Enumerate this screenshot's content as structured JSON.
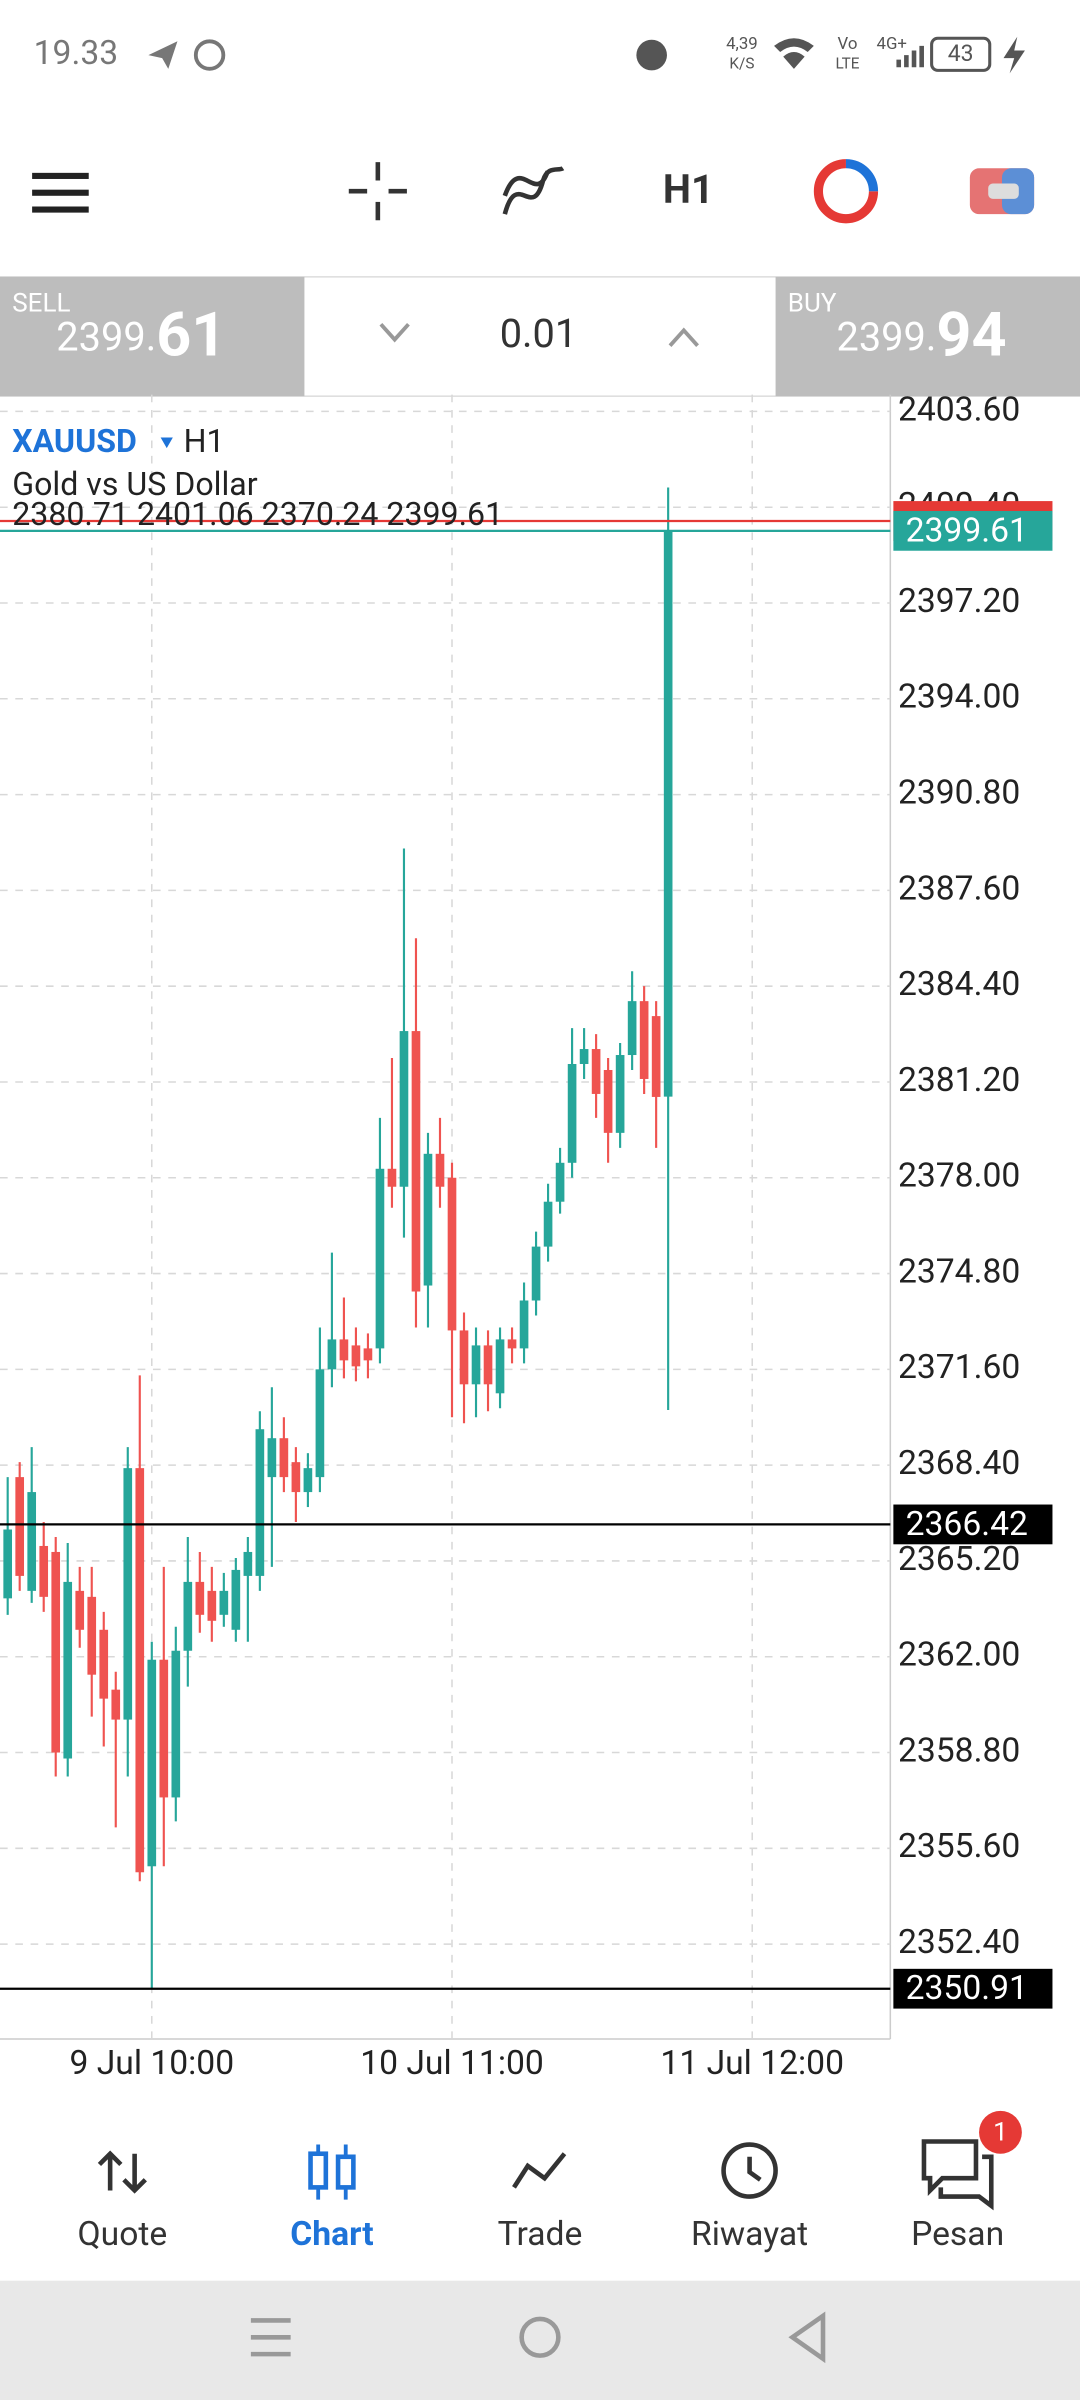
{
  "status_bar": {
    "time": "19.33",
    "network_speed": "4,39",
    "network_speed_unit": "K/S",
    "volte_top": "Vo",
    "volte_bottom": "LTE",
    "signal": "4G+",
    "battery": "43"
  },
  "toolbar": {
    "timeframe": "H1"
  },
  "trade_panel": {
    "sell_label": "SELL",
    "sell_price_main": "2399.",
    "sell_price_big": "61",
    "lot": "0.01",
    "buy_label": "BUY",
    "buy_price_main": "2399.",
    "buy_price_big": "94"
  },
  "chart_data": {
    "type": "candlestick",
    "symbol": "XAUUSD",
    "timeframe": "H1",
    "description": "Gold vs US Dollar",
    "open": [
      2363.95,
      2368.0,
      2364.2,
      2365.7,
      2365.5,
      2358.6,
      2364.2,
      2364.0,
      2362.9,
      2360.9,
      2359.9,
      2368.3,
      2355.0,
      2361.9,
      2357.3,
      2362.2,
      2364.5,
      2364.2,
      2363.4,
      2362.9,
      2364.7,
      2364.7,
      2368.0,
      2369.3,
      2368.5,
      2367.5,
      2368.0,
      2371.6,
      2372.6,
      2372.4,
      2372.3,
      2372.3,
      2378.3,
      2377.7,
      2382.9,
      2374.4,
      2378.8,
      2378.0,
      2372.9,
      2371.1,
      2372.4,
      2370.8,
      2372.6,
      2372.3,
      2373.9,
      2375.7,
      2377.2,
      2378.5,
      2381.8,
      2382.3,
      2381.6,
      2379.5,
      2382.1,
      2383.9,
      2383.4,
      2380.71
    ],
    "high": [
      2368.0,
      2368.5,
      2369.0,
      2366.5,
      2366.0,
      2365.8,
      2365.0,
      2365.0,
      2363.5,
      2361.5,
      2369.0,
      2371.4,
      2362.5,
      2365.0,
      2363.0,
      2366.0,
      2365.5,
      2365.0,
      2364.8,
      2365.3,
      2366.0,
      2370.2,
      2371.0,
      2370.0,
      2369.0,
      2368.8,
      2373.0,
      2375.5,
      2374.0,
      2373.0,
      2372.8,
      2380.0,
      2382.0,
      2389.0,
      2386.0,
      2379.5,
      2380.0,
      2378.5,
      2373.5,
      2373.0,
      2372.9,
      2373.0,
      2373.0,
      2374.5,
      2376.2,
      2377.8,
      2379.0,
      2383.0,
      2383.0,
      2382.8,
      2382.0,
      2382.5,
      2384.9,
      2384.4,
      2383.9,
      2401.06
    ],
    "low": [
      2363.4,
      2364.2,
      2363.8,
      2363.5,
      2358.0,
      2358.0,
      2362.3,
      2360.0,
      2359.0,
      2356.3,
      2358.0,
      2354.5,
      2350.91,
      2355.0,
      2356.5,
      2361.0,
      2362.8,
      2362.5,
      2363.0,
      2362.5,
      2362.5,
      2364.2,
      2365.0,
      2367.5,
      2366.5,
      2367.0,
      2367.5,
      2371.0,
      2371.3,
      2371.2,
      2371.3,
      2371.8,
      2377.0,
      2376.0,
      2373.0,
      2373.0,
      2377.0,
      2370.0,
      2369.8,
      2370.0,
      2370.2,
      2370.3,
      2371.8,
      2371.8,
      2373.4,
      2375.2,
      2376.8,
      2378.0,
      2381.3,
      2380.0,
      2378.5,
      2379.0,
      2381.6,
      2380.8,
      2379.0,
      2370.24
    ],
    "close": [
      2366.25,
      2364.7,
      2367.5,
      2364.0,
      2358.8,
      2364.5,
      2362.9,
      2361.4,
      2360.6,
      2359.9,
      2368.3,
      2354.8,
      2361.9,
      2357.3,
      2362.2,
      2364.5,
      2363.4,
      2363.2,
      2364.2,
      2364.9,
      2365.5,
      2369.6,
      2369.3,
      2368.0,
      2367.5,
      2368.3,
      2371.6,
      2372.6,
      2371.9,
      2371.7,
      2371.9,
      2378.3,
      2377.7,
      2382.9,
      2374.2,
      2378.8,
      2377.7,
      2372.9,
      2371.1,
      2372.4,
      2371.1,
      2372.6,
      2372.3,
      2373.9,
      2375.7,
      2377.2,
      2378.5,
      2381.8,
      2382.3,
      2380.8,
      2379.5,
      2382.1,
      2383.9,
      2381.3,
      2380.7,
      2399.61
    ],
    "up_color": "#26a69a",
    "down_color": "#ef5350",
    "xlim": [
      -0.64,
      73.5
    ],
    "xticks": [
      {
        "value": 12,
        "label": "9 Jul 10:00"
      },
      {
        "value": 37,
        "label": "10 Jul 11:00"
      },
      {
        "value": 62,
        "label": "11 Jul 12:00"
      }
    ],
    "ylim": [
      2349.23,
      2404.16
    ],
    "yticks": [
      {
        "value": 2403.6,
        "label": "2403.60"
      },
      {
        "value": 2400.4,
        "label": "2400.40"
      },
      {
        "value": 2397.2,
        "label": "2397.20"
      },
      {
        "value": 2394,
        "label": "2394.00"
      },
      {
        "value": 2390.8,
        "label": "2390.80"
      },
      {
        "value": 2387.6,
        "label": "2387.60"
      },
      {
        "value": 2384.4,
        "label": "2384.40"
      },
      {
        "value": 2381.2,
        "label": "2381.20"
      },
      {
        "value": 2378,
        "label": "2378.00"
      },
      {
        "value": 2374.8,
        "label": "2374.80"
      },
      {
        "value": 2371.6,
        "label": "2371.60"
      },
      {
        "value": 2368.4,
        "label": "2368.40"
      },
      {
        "value": 2365.2,
        "label": "2365.20"
      },
      {
        "value": 2362,
        "label": "2362.00"
      },
      {
        "value": 2358.8,
        "label": "2358.80"
      },
      {
        "value": 2355.6,
        "label": "2355.60"
      },
      {
        "value": 2352.4,
        "label": "2352.40"
      }
    ],
    "grid": true,
    "price_lines": [
      {
        "value": 2399.94,
        "color": "#e53935",
        "show_label": false
      },
      {
        "value": 2366.42,
        "color": "#000000",
        "show_label": true
      },
      {
        "value": 2350.91,
        "color": "#000000",
        "show_label": true
      },
      {
        "value": 2399.61,
        "color": "#26a69a",
        "show_label": true
      }
    ]
  },
  "bottom_nav": {
    "items": [
      {
        "label": "Quote"
      },
      {
        "label": "Chart"
      },
      {
        "label": "Trade"
      },
      {
        "label": "Riwayat"
      },
      {
        "label": "Pesan"
      }
    ],
    "badge": 1
  }
}
